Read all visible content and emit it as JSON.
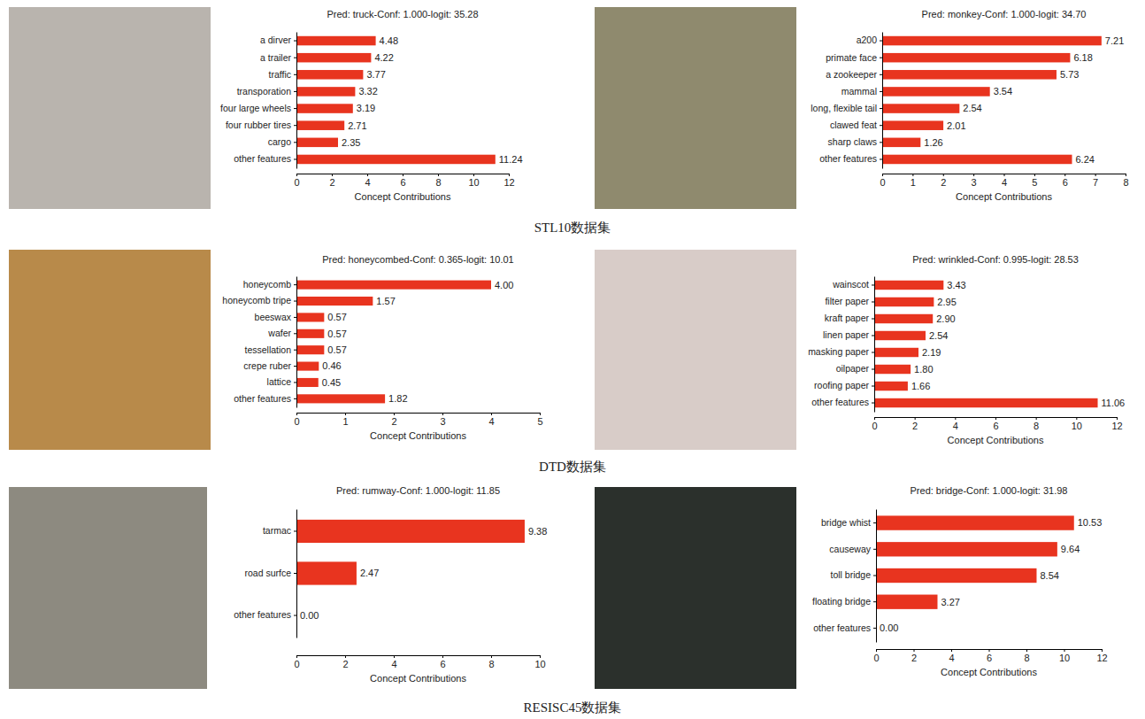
{
  "captions": [
    "STL10数据集",
    "DTD数据集",
    "RESISC45数据集"
  ],
  "chart_data": [
    {
      "type": "bar",
      "orientation": "horizontal",
      "data_labels": true,
      "color": "#e8341f",
      "grid": false,
      "title": "Pred: truck-Conf: 1.000-logit: 35.28",
      "xlabel": "Concept Contributions",
      "categories": [
        "a dirver",
        "a trailer",
        "traffic",
        "transporation",
        "four large wheels",
        "four rubber tires",
        "cargo",
        "other features"
      ],
      "values": [
        4.48,
        4.22,
        3.77,
        3.32,
        3.19,
        2.71,
        2.35,
        11.24
      ],
      "value_labels": [
        "4.48",
        "4.22",
        "3.77",
        "3.32",
        "3.19",
        "2.71",
        "2.35",
        "11.24"
      ],
      "xlim": [
        0,
        12
      ],
      "xticks": [
        0,
        2,
        4,
        6,
        8,
        10,
        12
      ]
    },
    {
      "type": "bar",
      "orientation": "horizontal",
      "data_labels": true,
      "color": "#e8341f",
      "grid": false,
      "title": "Pred: monkey-Conf: 1.000-logit: 34.70",
      "xlabel": "Concept Contributions",
      "categories": [
        "a200",
        "primate face",
        "a zookeeper",
        "mammal",
        "long, flexible tail",
        "clawed feat",
        "sharp claws",
        "other features"
      ],
      "values": [
        7.21,
        6.18,
        5.73,
        3.54,
        2.54,
        2.01,
        1.26,
        6.24
      ],
      "value_labels": [
        "7.21",
        "6.18",
        "5.73",
        "3.54",
        "2.54",
        "2.01",
        "1.26",
        "6.24"
      ],
      "xlim": [
        0,
        8
      ],
      "xticks": [
        0,
        1,
        2,
        3,
        4,
        5,
        6,
        7,
        8
      ]
    },
    {
      "type": "bar",
      "orientation": "horizontal",
      "data_labels": true,
      "color": "#e8341f",
      "grid": false,
      "title": "Pred: honeycombed-Conf: 0.365-logit: 10.01",
      "xlabel": "Concept Contributions",
      "categories": [
        "honeycomb",
        "honeycomb tripe",
        "beeswax",
        "wafer",
        "tessellation",
        "crepe ruber",
        "lattice",
        "other features"
      ],
      "values": [
        4.0,
        1.57,
        0.57,
        0.57,
        0.57,
        0.46,
        0.45,
        1.82
      ],
      "value_labels": [
        "4.00",
        "1.57",
        "0.57",
        "0.57",
        "0.57",
        "0.46",
        "0.45",
        "1.82"
      ],
      "xlim": [
        0,
        5
      ],
      "xticks": [
        0,
        1,
        2,
        3,
        4,
        5
      ]
    },
    {
      "type": "bar",
      "orientation": "horizontal",
      "data_labels": true,
      "color": "#e8341f",
      "grid": false,
      "title": "Pred: wrinkled-Conf: 0.995-logit: 28.53",
      "xlabel": "Concept Contributions",
      "categories": [
        "wainscot",
        "filter paper",
        "kraft paper",
        "linen paper",
        "masking paper",
        "oilpaper",
        "roofing paper",
        "other features"
      ],
      "values": [
        3.43,
        2.95,
        2.9,
        2.54,
        2.19,
        1.8,
        1.66,
        11.06
      ],
      "value_labels": [
        "3.43",
        "2.95",
        "2.90",
        "2.54",
        "2.19",
        "1.80",
        "1.66",
        "11.06"
      ],
      "xlim": [
        0,
        12
      ],
      "xticks": [
        0,
        2,
        4,
        6,
        8,
        10,
        12
      ]
    },
    {
      "type": "bar",
      "orientation": "horizontal",
      "data_labels": true,
      "color": "#e8341f",
      "grid": false,
      "title": "Pred: rumway-Conf: 1.000-logit: 11.85",
      "xlabel": "Concept Contributions",
      "categories": [
        "tarmac",
        "road surfce",
        "other features"
      ],
      "values": [
        9.38,
        2.47,
        0.0
      ],
      "value_labels": [
        "9.38",
        "2.47",
        "0.00"
      ],
      "xlim": [
        0,
        10
      ],
      "xticks": [
        0,
        2,
        4,
        6,
        8,
        10
      ]
    },
    {
      "type": "bar",
      "orientation": "horizontal",
      "data_labels": true,
      "color": "#e8341f",
      "grid": false,
      "title": "Pred: bridge-Conf: 1.000-logit: 31.98",
      "xlabel": "Concept Contributions",
      "categories": [
        "bridge whist",
        "causeway",
        "toll bridge",
        "floating bridge",
        "other features"
      ],
      "values": [
        10.53,
        9.64,
        8.54,
        3.27,
        0.0
      ],
      "value_labels": [
        "10.53",
        "9.64",
        "8.54",
        "3.27",
        "0.00"
      ],
      "xlim": [
        0,
        12
      ],
      "xticks": [
        0,
        2,
        4,
        6,
        8,
        10,
        12
      ]
    }
  ]
}
